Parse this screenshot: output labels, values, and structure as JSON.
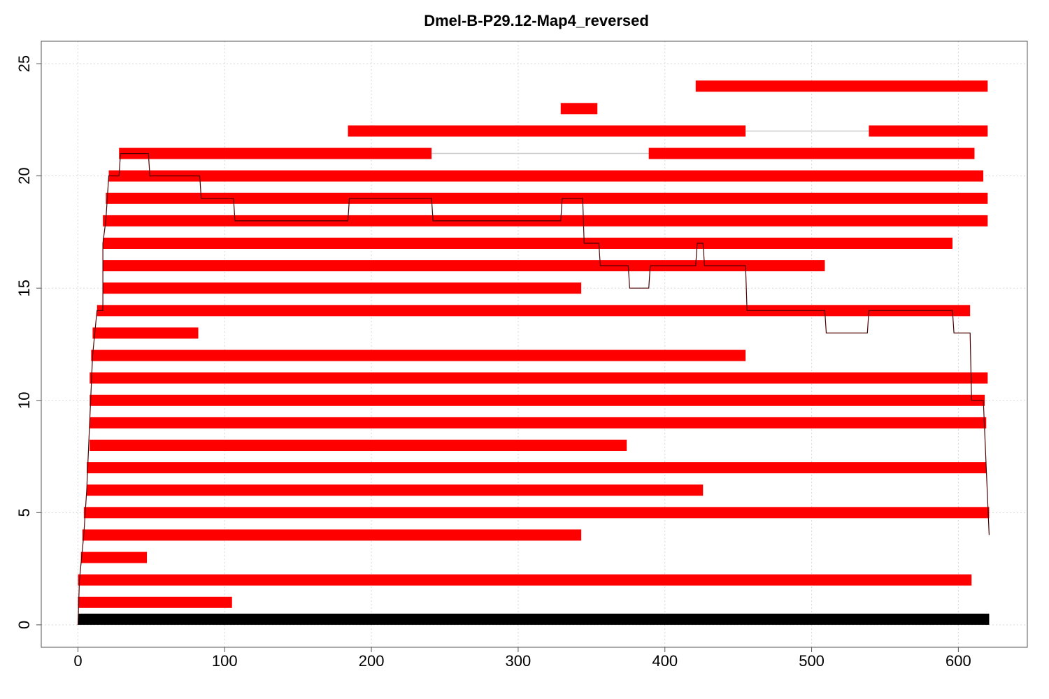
{
  "chart_data": {
    "type": "bar",
    "subtype": "horizontal-segment-alignment",
    "title": "Dmel-B-P29.12-Map4_reversed",
    "xlabel": "",
    "ylabel": "",
    "xlim": [
      -25,
      647
    ],
    "ylim": [
      -1,
      26
    ],
    "xticks": [
      0,
      100,
      200,
      300,
      400,
      500,
      600
    ],
    "yticks": [
      0,
      5,
      10,
      15,
      20,
      25
    ],
    "grid": true,
    "reference": {
      "y": 0,
      "start": 0,
      "end": 621,
      "color": "#000000"
    },
    "segment_color": "#ff0000",
    "gap_color": "#cccccc",
    "coverage_color": "#4a0000",
    "rows": [
      {
        "y": 1,
        "segments": [
          [
            0,
            105
          ]
        ]
      },
      {
        "y": 2,
        "segments": [
          [
            0,
            609
          ]
        ]
      },
      {
        "y": 3,
        "segments": [
          [
            2,
            47
          ]
        ]
      },
      {
        "y": 4,
        "segments": [
          [
            3,
            343
          ]
        ]
      },
      {
        "y": 5,
        "segments": [
          [
            4,
            621
          ]
        ]
      },
      {
        "y": 6,
        "segments": [
          [
            6,
            426
          ]
        ]
      },
      {
        "y": 7,
        "segments": [
          [
            6,
            619
          ]
        ]
      },
      {
        "y": 8,
        "segments": [
          [
            8,
            374
          ]
        ]
      },
      {
        "y": 9,
        "segments": [
          [
            8,
            619
          ]
        ]
      },
      {
        "y": 10,
        "segments": [
          [
            8,
            618
          ]
        ]
      },
      {
        "y": 11,
        "segments": [
          [
            8,
            620
          ]
        ]
      },
      {
        "y": 12,
        "segments": [
          [
            9,
            455
          ]
        ]
      },
      {
        "y": 13,
        "segments": [
          [
            10,
            82
          ]
        ]
      },
      {
        "y": 14,
        "segments": [
          [
            13,
            608
          ]
        ]
      },
      {
        "y": 15,
        "segments": [
          [
            17,
            343
          ]
        ]
      },
      {
        "y": 16,
        "segments": [
          [
            17,
            509
          ]
        ]
      },
      {
        "y": 17,
        "segments": [
          [
            17,
            596
          ]
        ]
      },
      {
        "y": 18,
        "segments": [
          [
            17,
            620
          ]
        ]
      },
      {
        "y": 19,
        "segments": [
          [
            19,
            620
          ]
        ]
      },
      {
        "y": 20,
        "segments": [
          [
            21,
            617
          ]
        ]
      },
      {
        "y": 21,
        "segments": [
          [
            28,
            241
          ],
          [
            389,
            611
          ]
        ]
      },
      {
        "y": 22,
        "segments": [
          [
            184,
            455
          ],
          [
            539,
            620
          ]
        ]
      },
      {
        "y": 23,
        "segments": [
          [
            329,
            354
          ]
        ]
      },
      {
        "y": 24,
        "segments": [
          [
            421,
            620
          ]
        ]
      }
    ],
    "coverage": [
      [
        0,
        0
      ],
      [
        1,
        2
      ],
      [
        4,
        4
      ],
      [
        6,
        6
      ],
      [
        8,
        9
      ],
      [
        10,
        12
      ],
      [
        13,
        14
      ],
      [
        17,
        14
      ],
      [
        17,
        17
      ],
      [
        19,
        18
      ],
      [
        21,
        20
      ],
      [
        28,
        20
      ],
      [
        29,
        21
      ],
      [
        48,
        21
      ],
      [
        49,
        20
      ],
      [
        83,
        20
      ],
      [
        84,
        19
      ],
      [
        106,
        19
      ],
      [
        107,
        18
      ],
      [
        184,
        18
      ],
      [
        185,
        19
      ],
      [
        241,
        19
      ],
      [
        242,
        18
      ],
      [
        329,
        18
      ],
      [
        330,
        19
      ],
      [
        344,
        19
      ],
      [
        345,
        17
      ],
      [
        355,
        17
      ],
      [
        356,
        16
      ],
      [
        375,
        16
      ],
      [
        376,
        15
      ],
      [
        389,
        15
      ],
      [
        390,
        16
      ],
      [
        421,
        16
      ],
      [
        422,
        17
      ],
      [
        426,
        17
      ],
      [
        427,
        16
      ],
      [
        455,
        16
      ],
      [
        456,
        14
      ],
      [
        509,
        14
      ],
      [
        510,
        13
      ],
      [
        538,
        13
      ],
      [
        539,
        14
      ],
      [
        596,
        14
      ],
      [
        597,
        13
      ],
      [
        608,
        13
      ],
      [
        609,
        10
      ],
      [
        617,
        10
      ],
      [
        621,
        4
      ]
    ]
  }
}
